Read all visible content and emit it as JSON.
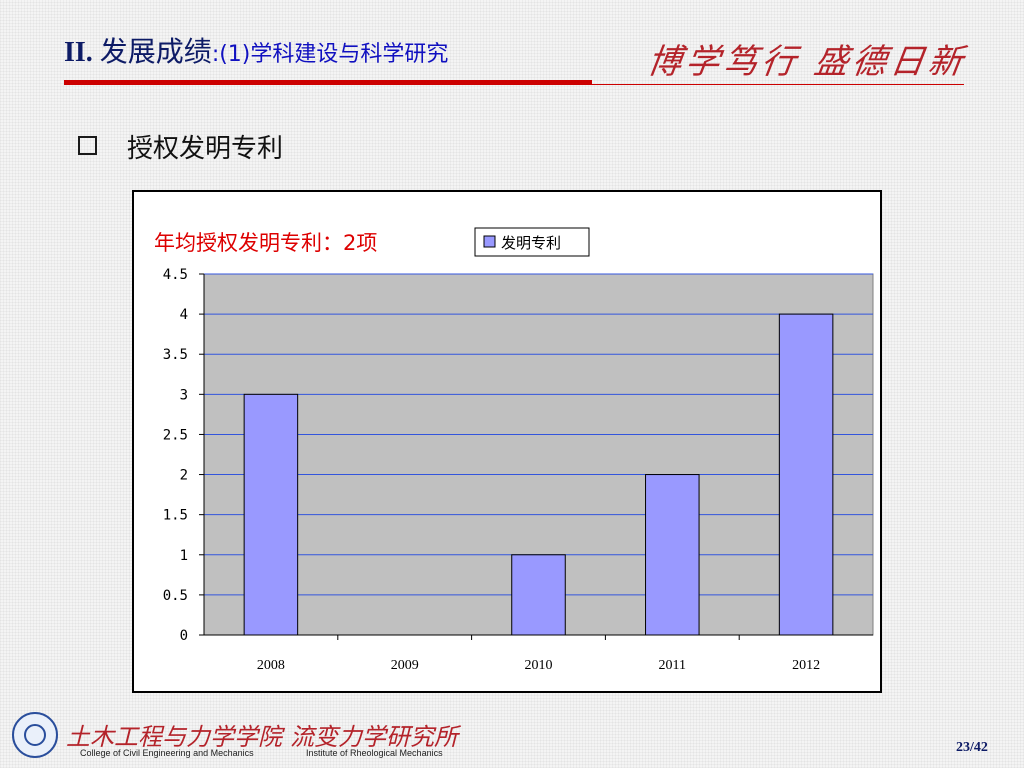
{
  "header": {
    "title_roman": "II.",
    "title_main": "发展成绩",
    "title_sub": ":(1)学科建设与科学研究",
    "motto": "博学笃行 盛德日新"
  },
  "section": {
    "heading": "授权发明专利"
  },
  "chart_data": {
    "type": "bar",
    "annotation": "年均授权发明专利：2项",
    "categories": [
      "2008",
      "2009",
      "2010",
      "2011",
      "2012"
    ],
    "series": [
      {
        "name": "发明专利",
        "values": [
          3,
          0,
          1,
          2,
          4
        ],
        "color": "#9999ff"
      }
    ],
    "yticks": [
      "0",
      "0.5",
      "1",
      "1.5",
      "2",
      "2.5",
      "3",
      "3.5",
      "4",
      "4.5"
    ],
    "ylim": [
      0,
      4.5
    ],
    "grid": true,
    "legend_position": "top-right",
    "plot_background": "#c0c0c0",
    "gridline_color": "#3355dd"
  },
  "footer": {
    "college_cn": "土木工程与力学学院",
    "college_en": "College of Civil Engineering and Mechanics",
    "institute_cn": "流变力学研究所",
    "institute_en": "Institute of Rheological Mechanics",
    "page": "23/42"
  },
  "colors": {
    "accent_red": "#cc0000",
    "title_navy": "#0d1b66",
    "subtitle_blue": "#1010c0"
  }
}
